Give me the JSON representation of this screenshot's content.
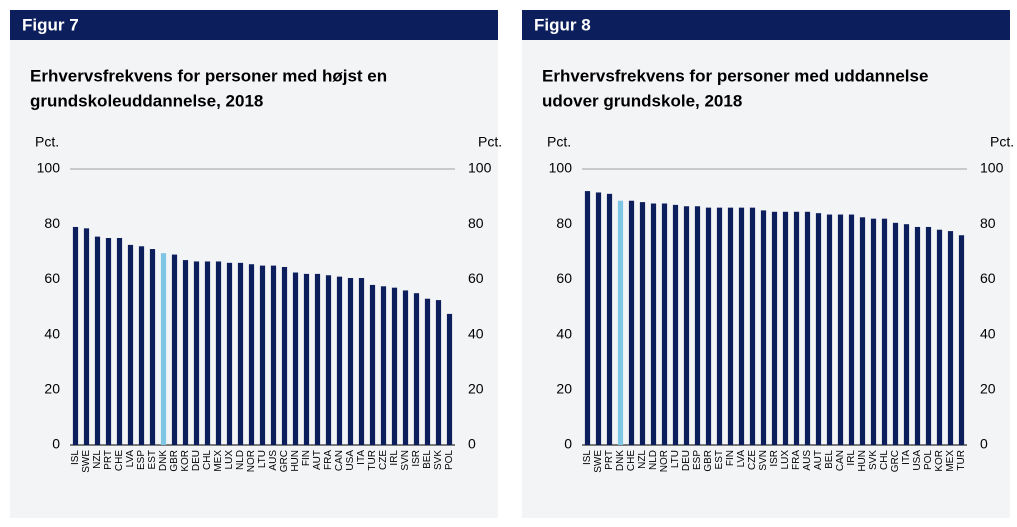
{
  "chart_data": [
    {
      "type": "bar",
      "figure_label": "Figur 7",
      "title_lines": [
        "Erhvervsfrekvens for personer med højst en",
        "grundskoleuddannelse, 2018"
      ],
      "y_label": "Pct.",
      "y2_label": "Pct.",
      "categories": [
        "ISL",
        "SWE",
        "NZL",
        "PRT",
        "CHE",
        "LVA",
        "ESP",
        "EST",
        "DNK",
        "GBR",
        "KOR",
        "DEU",
        "CHL",
        "MEX",
        "LUX",
        "NLD",
        "NOR",
        "LTU",
        "AUS",
        "GRC",
        "HUN",
        "FIN",
        "AUT",
        "FRA",
        "CAN",
        "USA",
        "ITA",
        "TUR",
        "CZE",
        "IRL",
        "SVN",
        "ISR",
        "BEL",
        "SVK",
        "POL"
      ],
      "values": [
        79,
        78.5,
        75.5,
        75,
        75,
        72.5,
        72,
        71,
        69.5,
        69,
        67,
        66.5,
        66.5,
        66.5,
        66,
        66,
        65.5,
        65,
        65,
        64.5,
        62.5,
        62,
        62,
        61.5,
        61,
        60.5,
        60.5,
        58,
        57.5,
        57,
        56,
        55,
        53,
        52.5,
        47.5
      ],
      "colors": [
        "#0c1f5c",
        "#0c1f5c",
        "#0c1f5c",
        "#0c1f5c",
        "#0c1f5c",
        "#0c1f5c",
        "#0c1f5c",
        "#0c1f5c",
        "#7fc6e4",
        "#0c1f5c",
        "#0c1f5c",
        "#0c1f5c",
        "#0c1f5c",
        "#0c1f5c",
        "#0c1f5c",
        "#0c1f5c",
        "#0c1f5c",
        "#0c1f5c",
        "#0c1f5c",
        "#0c1f5c",
        "#0c1f5c",
        "#0c1f5c",
        "#0c1f5c",
        "#0c1f5c",
        "#0c1f5c",
        "#0c1f5c",
        "#0c1f5c",
        "#0c1f5c",
        "#0c1f5c",
        "#0c1f5c",
        "#0c1f5c",
        "#0c1f5c",
        "#0c1f5c",
        "#0c1f5c",
        "#0c1f5c"
      ],
      "ylim": [
        0,
        100
      ],
      "yticks": [
        0,
        20,
        40,
        60,
        80,
        100
      ],
      "y2lim": [
        0,
        100
      ],
      "y2ticks": [
        0,
        20,
        40,
        60,
        80,
        100
      ]
    },
    {
      "type": "bar",
      "figure_label": "Figur 8",
      "title_lines": [
        "Erhvervsfrekvens for personer med uddannelse",
        "udover grundskole, 2018"
      ],
      "y_label": "Pct.",
      "y2_label": "Pct.",
      "categories": [
        "ISL",
        "SWE",
        "PRT",
        "DNK",
        "CHE",
        "NZL",
        "NLD",
        "NOR",
        "LTU",
        "DEU",
        "ESP",
        "GBR",
        "EST",
        "FIN",
        "LVA",
        "CZE",
        "SVN",
        "ISR",
        "LUX",
        "FRA",
        "AUS",
        "AUT",
        "BEL",
        "CAN",
        "IRL",
        "HUN",
        "SVK",
        "CHL",
        "GRC",
        "ITA",
        "USA",
        "POL",
        "KOR",
        "MEX",
        "TUR"
      ],
      "values": [
        92,
        91.5,
        91,
        88.5,
        88.5,
        88,
        87.5,
        87.5,
        87,
        86.5,
        86.5,
        86,
        86,
        86,
        86,
        86,
        85,
        84.5,
        84.5,
        84.5,
        84.5,
        84,
        83.5,
        83.5,
        83.5,
        82.5,
        82,
        82,
        80.5,
        80,
        79,
        79,
        78,
        77.5,
        76
      ],
      "colors": [
        "#0c1f5c",
        "#0c1f5c",
        "#0c1f5c",
        "#7fc6e4",
        "#0c1f5c",
        "#0c1f5c",
        "#0c1f5c",
        "#0c1f5c",
        "#0c1f5c",
        "#0c1f5c",
        "#0c1f5c",
        "#0c1f5c",
        "#0c1f5c",
        "#0c1f5c",
        "#0c1f5c",
        "#0c1f5c",
        "#0c1f5c",
        "#0c1f5c",
        "#0c1f5c",
        "#0c1f5c",
        "#0c1f5c",
        "#0c1f5c",
        "#0c1f5c",
        "#0c1f5c",
        "#0c1f5c",
        "#0c1f5c",
        "#0c1f5c",
        "#0c1f5c",
        "#0c1f5c",
        "#0c1f5c",
        "#0c1f5c",
        "#0c1f5c",
        "#0c1f5c",
        "#0c1f5c",
        "#0c1f5c"
      ],
      "ylim": [
        0,
        100
      ],
      "yticks": [
        0,
        20,
        40,
        60,
        80,
        100
      ],
      "y2lim": [
        0,
        100
      ],
      "y2ticks": [
        0,
        20,
        40,
        60,
        80,
        100
      ]
    }
  ]
}
